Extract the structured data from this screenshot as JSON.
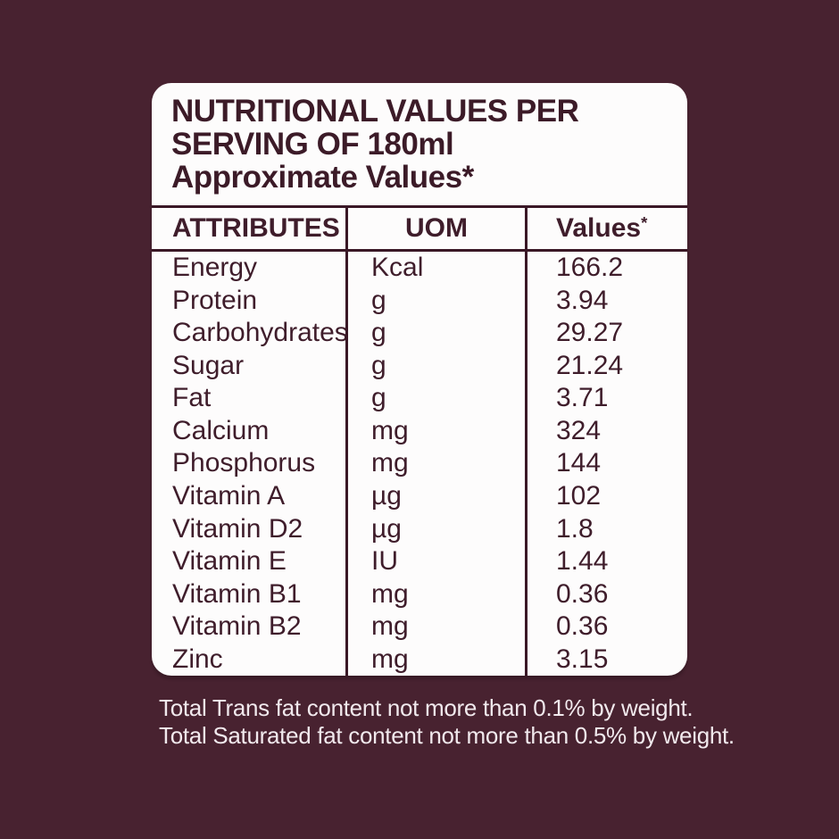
{
  "card": {
    "title_line1": "NUTRITIONAL VALUES PER",
    "title_line2": "SERVING OF 180ml",
    "subtitle": "Approximate Values*"
  },
  "table": {
    "headers": {
      "attributes": "ATTRIBUTES",
      "uom": "UOM",
      "values": "Values",
      "values_asterisk": "*"
    },
    "rows": [
      {
        "attribute": "Energy",
        "uom": "Kcal",
        "value": "166.2"
      },
      {
        "attribute": "Protein",
        "uom": "g",
        "value": "3.94"
      },
      {
        "attribute": "Carbohydrates",
        "uom": "g",
        "value": "29.27"
      },
      {
        "attribute": "Sugar",
        "uom": "g",
        "value": "21.24"
      },
      {
        "attribute": "Fat",
        "uom": "g",
        "value": "3.71"
      },
      {
        "attribute": "Calcium",
        "uom": "mg",
        "value": "324"
      },
      {
        "attribute": "Phosphorus",
        "uom": "mg",
        "value": "144"
      },
      {
        "attribute": "Vitamin A",
        "uom": "µg",
        "value": "102"
      },
      {
        "attribute": "Vitamin D2",
        "uom": "µg",
        "value": "1.8"
      },
      {
        "attribute": "Vitamin E",
        "uom": "IU",
        "value": "1.44"
      },
      {
        "attribute": "Vitamin B1",
        "uom": "mg",
        "value": "0.36"
      },
      {
        "attribute": "Vitamin B2",
        "uom": "mg",
        "value": "0.36"
      },
      {
        "attribute": "Zinc",
        "uom": "mg",
        "value": "3.15"
      }
    ]
  },
  "footnotes": {
    "line1": "Total Trans fat content not more than 0.1% by weight.",
    "line2": "Total Saturated fat content not more than 0.5% by weight."
  },
  "colors": {
    "background": "#482230",
    "card_background": "#fdfcfc",
    "text_maroon": "#3c1b28",
    "rule_maroon": "#3a1826",
    "footnote_text": "#f1e9ed"
  }
}
